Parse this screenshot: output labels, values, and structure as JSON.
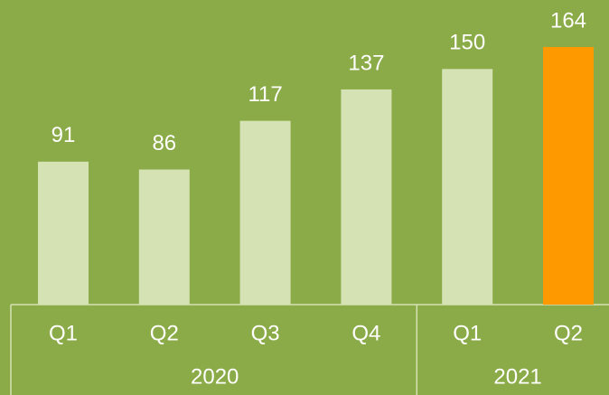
{
  "chart_data": {
    "type": "bar",
    "groups": [
      {
        "name": "2020",
        "categories": [
          "Q1",
          "Q2",
          "Q3",
          "Q4"
        ]
      },
      {
        "name": "2021",
        "categories": [
          "Q1",
          "Q2"
        ]
      }
    ],
    "values": [
      91,
      86,
      117,
      137,
      150,
      164
    ],
    "colors": [
      "#d4e2b4",
      "#d4e2b4",
      "#d4e2b4",
      "#d4e2b4",
      "#d4e2b4",
      "#ff9900"
    ]
  }
}
